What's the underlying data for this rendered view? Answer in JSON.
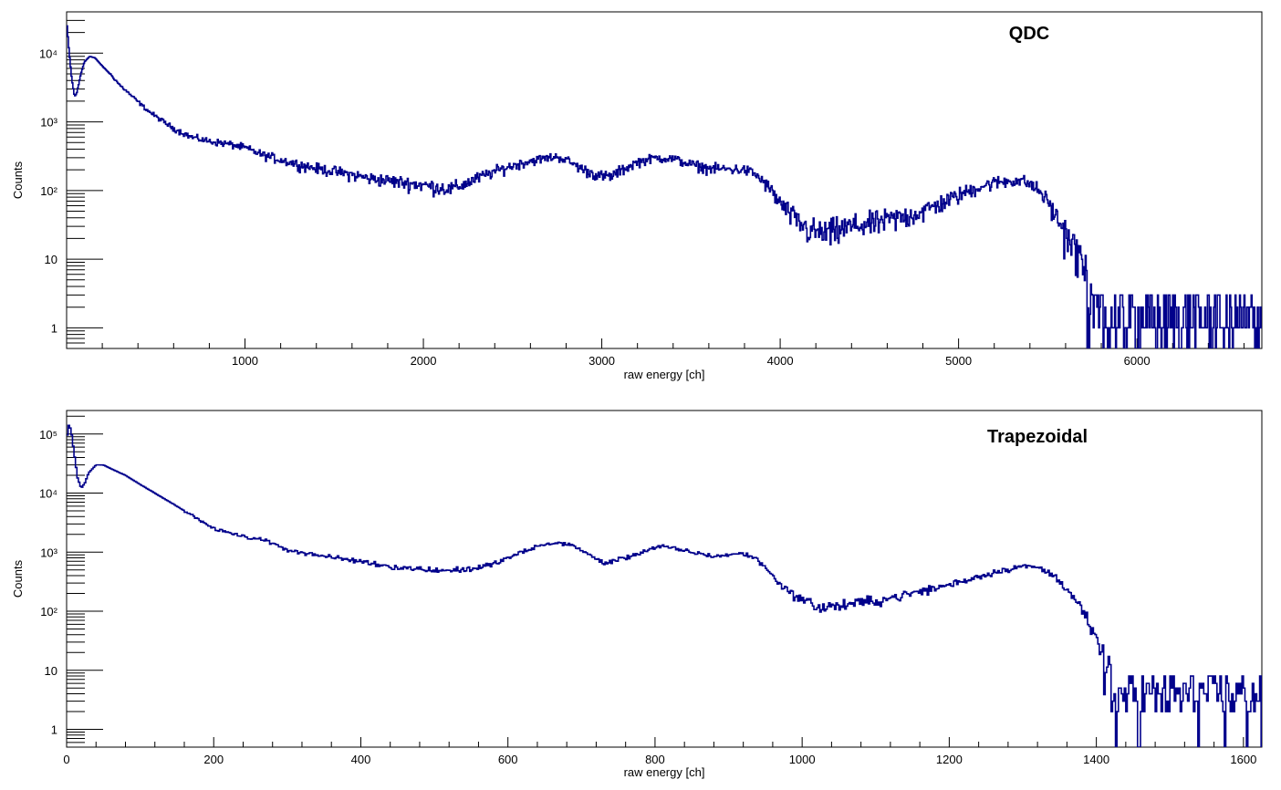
{
  "line_color": "#00008b",
  "chart_data": [
    {
      "type": "line",
      "style": "step-histogram",
      "title": "QDC",
      "xlabel": "raw energy [ch]",
      "ylabel": "Counts",
      "xlim": [
        0,
        6700
      ],
      "ylim": [
        0.5,
        40000
      ],
      "yscale": "log",
      "grid": false,
      "x_ticks": [
        1000,
        2000,
        3000,
        4000,
        5000,
        6000
      ],
      "y_ticks": [
        {
          "value": 1,
          "label": "1"
        },
        {
          "value": 10,
          "label": "10"
        },
        {
          "value": 100,
          "label": "10²"
        },
        {
          "value": 1000,
          "label": "10³"
        },
        {
          "value": 10000,
          "label": "10⁴"
        }
      ],
      "series": [
        {
          "bin_width": 5,
          "noise_start": 5750,
          "noise_levels": [
            0,
            1,
            1,
            2,
            3
          ],
          "x": [
            0,
            15,
            30,
            45,
            60,
            80,
            100,
            130,
            160,
            200,
            250,
            300,
            380,
            450,
            500,
            600,
            700,
            800,
            900,
            1000,
            1100,
            1200,
            1300,
            1400,
            1500,
            1600,
            1700,
            1800,
            1900,
            2000,
            2100,
            2150,
            2200,
            2300,
            2400,
            2500,
            2600,
            2700,
            2750,
            2800,
            2900,
            3000,
            3050,
            3100,
            3200,
            3300,
            3400,
            3500,
            3600,
            3700,
            3800,
            3850,
            3900,
            3950,
            4000,
            4100,
            4150,
            4200,
            4250,
            4300,
            4400,
            4500,
            4600,
            4700,
            4800,
            4900,
            5000,
            5100,
            5200,
            5300,
            5350,
            5400,
            5450,
            5500,
            5550,
            5600,
            5650,
            5700,
            5750
          ],
          "y": [
            30000,
            10000,
            4000,
            2300,
            2800,
            5000,
            7500,
            9000,
            8500,
            6500,
            4800,
            3400,
            2200,
            1500,
            1200,
            800,
            600,
            520,
            480,
            420,
            330,
            280,
            240,
            210,
            190,
            170,
            150,
            140,
            130,
            120,
            110,
            105,
            115,
            150,
            190,
            230,
            270,
            300,
            310,
            280,
            200,
            160,
            160,
            190,
            260,
            300,
            290,
            240,
            210,
            205,
            200,
            180,
            140,
            100,
            65,
            35,
            28,
            25,
            24,
            26,
            30,
            33,
            37,
            42,
            50,
            65,
            85,
            110,
            130,
            140,
            140,
            125,
            100,
            70,
            40,
            25,
            15,
            8,
            3
          ]
        }
      ]
    },
    {
      "type": "line",
      "style": "step-histogram",
      "title": "Trapezoidal",
      "xlabel": "raw energy  [ch]",
      "ylabel": "Counts",
      "xlim": [
        0,
        1625
      ],
      "ylim": [
        0.5,
        250000
      ],
      "yscale": "log",
      "grid": false,
      "x_ticks": [
        0,
        200,
        400,
        600,
        800,
        1000,
        1200,
        1400,
        1600
      ],
      "y_ticks": [
        {
          "value": 1,
          "label": "1"
        },
        {
          "value": 10,
          "label": "10"
        },
        {
          "value": 100,
          "label": "10²"
        },
        {
          "value": 1000,
          "label": "10³"
        },
        {
          "value": 10000,
          "label": "10⁴"
        },
        {
          "value": 100000,
          "label": "10⁵"
        }
      ],
      "series": [
        {
          "bin_width": 2,
          "noise_start": 1420,
          "noise_levels": [
            0,
            2,
            3,
            4,
            5,
            6,
            8
          ],
          "x": [
            0,
            3,
            6,
            10,
            15,
            20,
            25,
            30,
            40,
            50,
            60,
            80,
            100,
            120,
            150,
            200,
            250,
            260,
            280,
            300,
            350,
            400,
            450,
            500,
            520,
            550,
            580,
            600,
            640,
            665,
            690,
            710,
            730,
            760,
            800,
            810,
            850,
            880,
            900,
            920,
            940,
            960,
            980,
            1000,
            1020,
            1030,
            1040,
            1060,
            1100,
            1150,
            1200,
            1250,
            1280,
            1300,
            1320,
            1340,
            1360,
            1380,
            1400,
            1420
          ],
          "y": [
            80000,
            140000,
            120000,
            50000,
            18000,
            12000,
            15000,
            22000,
            30000,
            30000,
            26000,
            20000,
            14000,
            10000,
            6000,
            2500,
            1700,
            1750,
            1400,
            1100,
            850,
            700,
            550,
            500,
            490,
            520,
            620,
            800,
            1250,
            1450,
            1300,
            900,
            650,
            800,
            1200,
            1250,
            1000,
            850,
            900,
            950,
            750,
            400,
            220,
            160,
            120,
            115,
            120,
            130,
            150,
            200,
            280,
            420,
            520,
            580,
            550,
            420,
            250,
            110,
            30,
            8
          ]
        }
      ]
    }
  ]
}
